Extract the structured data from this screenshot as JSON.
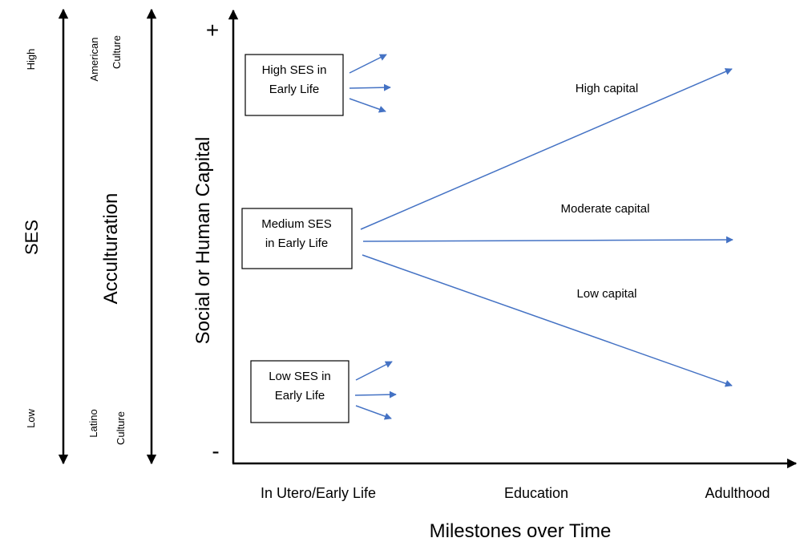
{
  "ses_axis": {
    "label": "SES",
    "top_label": "High",
    "bottom_label": "Low"
  },
  "acculturation_axis": {
    "label": "Acculturation",
    "top_label_line1": "American",
    "top_label_line2": "Culture",
    "bottom_label_line1": "Latino",
    "bottom_label_line2": "Culture"
  },
  "y_axis": {
    "label": "Social or Human Capital",
    "plus": "+",
    "minus": "-"
  },
  "x_axis": {
    "label": "Milestones over Time",
    "ticks": [
      "In Utero/Early Life",
      "Education",
      "Adulthood"
    ]
  },
  "boxes": {
    "high": {
      "line1": "High SES in",
      "line2": "Early Life"
    },
    "medium": {
      "line1": "Medium SES",
      "line2": "in Early Life"
    },
    "low": {
      "line1": "Low SES in",
      "line2": "Early Life"
    }
  },
  "trajectories": {
    "high": "High capital",
    "moderate": "Moderate capital",
    "low": "Low capital"
  },
  "colors": {
    "arrow": "#4472C4",
    "axis": "#000000"
  }
}
